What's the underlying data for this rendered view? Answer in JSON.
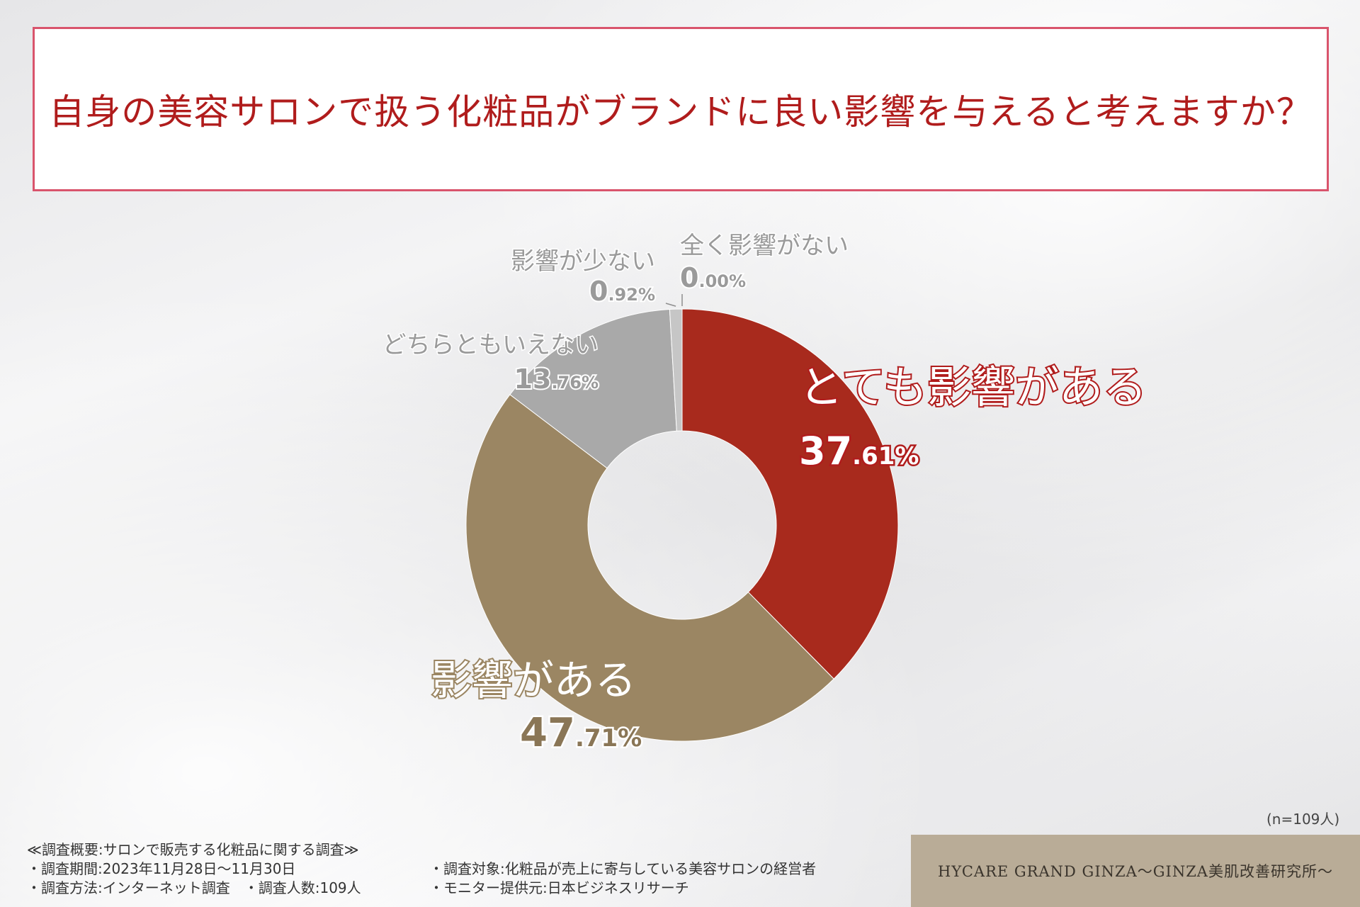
{
  "title": "自身の美容サロンで扱う化粧品がブランドに良い影響を与えると考えますか？",
  "chart_data": {
    "type": "pie",
    "title": "自身の美容サロンで扱う化粧品がブランドに良い影響を与えると考えますか？",
    "slices": [
      {
        "label": "とても影響がある",
        "value": 37.61,
        "pct_int": "37",
        "pct_dec": ".61%",
        "color": "#a82a1d"
      },
      {
        "label": "影響がある",
        "value": 47.71,
        "pct_int": "47",
        "pct_dec": ".71%",
        "color": "#9b8663"
      },
      {
        "label": "どちらともいえない",
        "value": 13.76,
        "pct_int": "13",
        "pct_dec": ".76%",
        "color": "#a9a9a9"
      },
      {
        "label": "影響が少ない",
        "value": 0.92,
        "pct_int": "0",
        "pct_dec": ".92%",
        "color": "#c6c6c6"
      },
      {
        "label": "全く影響がない",
        "value": 0.0,
        "pct_int": "0",
        "pct_dec": ".00%",
        "color": "#dddddd"
      }
    ]
  },
  "sample_note": "(n=109人)",
  "notes": {
    "heading": "≪調査概要:サロンで販売する化粧品に関する調査≫",
    "period": "・調査期間:2023年11月28日〜11月30日",
    "method": "・調査方法:インターネット調査　・調査人数:109人",
    "target": "・調査対象:化粧品が売上に寄与している美容サロンの経営者",
    "provider": "・モニター提供元:日本ビジネスリサーチ"
  },
  "brand": "HYCARE GRAND GINZA～GINZA美肌改善研究所～"
}
